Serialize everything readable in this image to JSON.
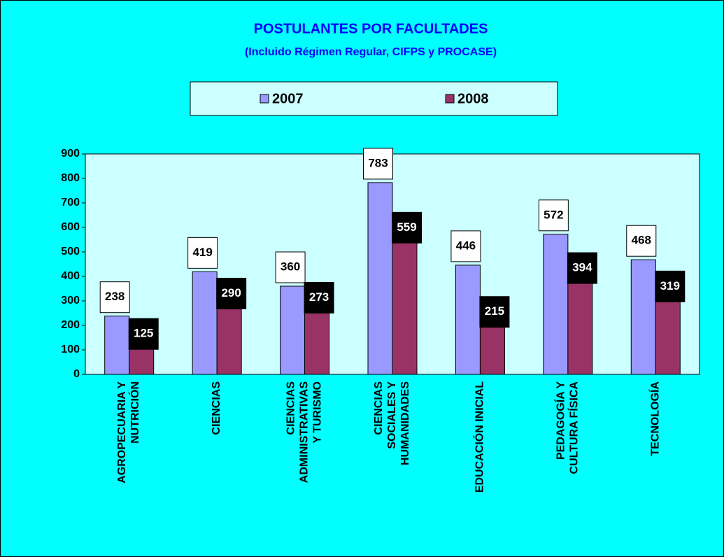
{
  "chart_data": {
    "type": "bar",
    "title": "POSTULANTES POR FACULTADES",
    "subtitle": "(Incluido Régimen Regular, CIFPS y PROCASE)",
    "categories": [
      "AGROPECUARIA Y\nNUTRICIÓN",
      "CIENCIAS",
      "CIENCIAS\nADMINISTRATIVAS\nY TURISMO",
      "CIENCIAS\nSOCIALES Y\nHUMANIDADES",
      "EDUCACIÓN INICIAL",
      "PEDAGOGÍA Y\nCULTURA FÍSICA",
      "TECNOLOGÍA"
    ],
    "series": [
      {
        "name": "2007",
        "color": "#9999ff",
        "values": [
          238,
          419,
          360,
          783,
          446,
          572,
          468
        ]
      },
      {
        "name": "2008",
        "color": "#993366",
        "values": [
          125,
          290,
          273,
          559,
          215,
          394,
          319
        ]
      }
    ],
    "ylim": [
      0,
      900
    ],
    "yticks": [
      0,
      100,
      200,
      300,
      400,
      500,
      600,
      700,
      800,
      900
    ],
    "legend": "top"
  }
}
